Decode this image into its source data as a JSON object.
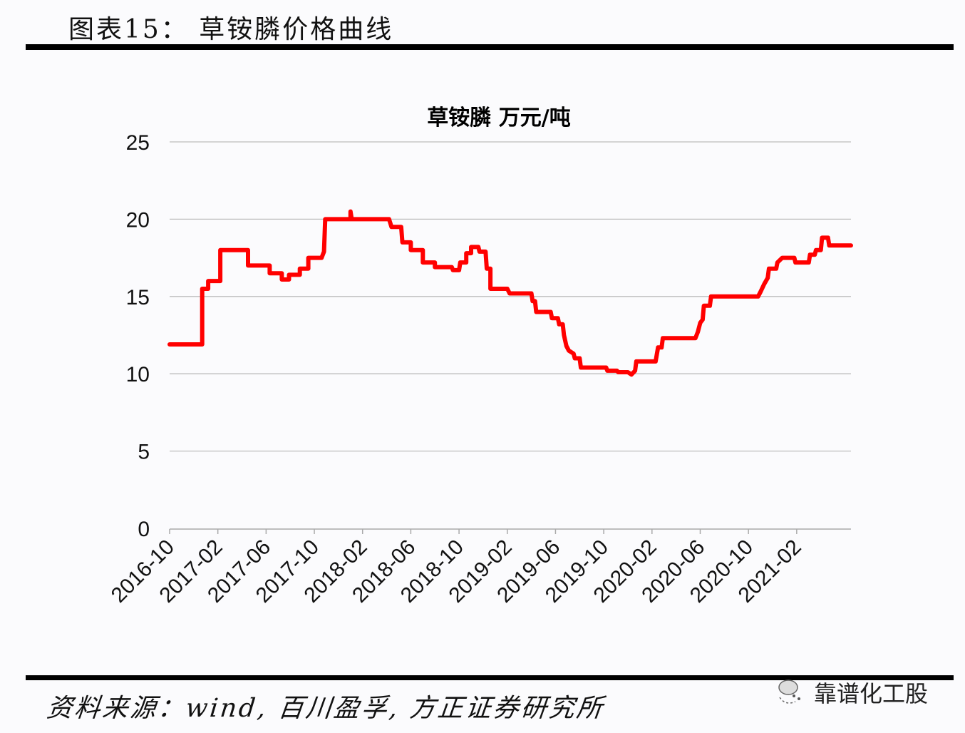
{
  "header": {
    "figure_title": "图表15： 草铵膦价格曲线"
  },
  "footer": {
    "source": "资料来源：wind, 百川盈孚, 方正证券研究所",
    "watermark": "靠谱化工股"
  },
  "colors": {
    "line": "#ff0000",
    "grid": "#bdbdbd",
    "axis": "#aaaaaa",
    "rule": "#000000"
  },
  "chart_data": {
    "type": "line",
    "title": "草铵膦 万元/吨",
    "xlabel": "",
    "ylabel": "万元/吨",
    "ylim": [
      0,
      25
    ],
    "yticks": [
      0,
      5,
      10,
      15,
      20,
      25
    ],
    "grid": true,
    "legend": "none",
    "x_tick_labels": [
      "2016-10",
      "2017-02",
      "2017-06",
      "2017-10",
      "2018-02",
      "2018-06",
      "2018-10",
      "2019-02",
      "2019-06",
      "2019-10",
      "2020-02",
      "2020-06",
      "2020-10",
      "2021-02"
    ],
    "x_unit": "months since 2016-10",
    "x_range": [
      0,
      56.5
    ],
    "series": [
      {
        "name": "草铵膦",
        "step": true,
        "points": [
          [
            0.0,
            11.9
          ],
          [
            2.7,
            11.9
          ],
          [
            2.7,
            15.5
          ],
          [
            3.2,
            15.5
          ],
          [
            3.2,
            16.0
          ],
          [
            4.2,
            16.0
          ],
          [
            4.2,
            18.0
          ],
          [
            6.5,
            18.0
          ],
          [
            6.5,
            17.0
          ],
          [
            8.3,
            17.0
          ],
          [
            8.3,
            16.5
          ],
          [
            9.3,
            16.5
          ],
          [
            9.3,
            16.1
          ],
          [
            9.9,
            16.1
          ],
          [
            9.9,
            16.4
          ],
          [
            10.8,
            16.4
          ],
          [
            10.8,
            16.8
          ],
          [
            11.5,
            16.8
          ],
          [
            11.5,
            17.5
          ],
          [
            12.6,
            17.5
          ],
          [
            12.8,
            17.9
          ],
          [
            12.9,
            20.0
          ],
          [
            15.0,
            20.0
          ],
          [
            15.0,
            20.5
          ],
          [
            15.1,
            20.0
          ],
          [
            18.2,
            20.0
          ],
          [
            18.4,
            19.5
          ],
          [
            19.2,
            19.5
          ],
          [
            19.3,
            18.5
          ],
          [
            20.0,
            18.5
          ],
          [
            20.0,
            18.0
          ],
          [
            21.0,
            18.0
          ],
          [
            21.0,
            17.2
          ],
          [
            22.0,
            17.2
          ],
          [
            22.0,
            16.9
          ],
          [
            23.4,
            16.9
          ],
          [
            23.5,
            16.7
          ],
          [
            24.0,
            16.7
          ],
          [
            24.1,
            17.2
          ],
          [
            24.6,
            17.2
          ],
          [
            24.6,
            17.8
          ],
          [
            25.0,
            17.8
          ],
          [
            25.0,
            18.2
          ],
          [
            25.6,
            18.2
          ],
          [
            25.7,
            17.9
          ],
          [
            26.2,
            17.9
          ],
          [
            26.3,
            16.8
          ],
          [
            26.6,
            16.8
          ],
          [
            26.6,
            15.5
          ],
          [
            28.0,
            15.5
          ],
          [
            28.2,
            15.2
          ],
          [
            30.0,
            15.2
          ],
          [
            30.1,
            14.7
          ],
          [
            30.3,
            14.7
          ],
          [
            30.4,
            14.0
          ],
          [
            31.6,
            14.0
          ],
          [
            31.7,
            13.6
          ],
          [
            32.2,
            13.6
          ],
          [
            32.3,
            13.2
          ],
          [
            32.6,
            13.2
          ],
          [
            32.7,
            12.5
          ],
          [
            32.9,
            11.8
          ],
          [
            33.1,
            11.5
          ],
          [
            33.5,
            11.3
          ],
          [
            33.6,
            11.0
          ],
          [
            34.0,
            11.0
          ],
          [
            34.1,
            10.4
          ],
          [
            36.2,
            10.4
          ],
          [
            36.3,
            10.2
          ],
          [
            37.1,
            10.2
          ],
          [
            37.2,
            10.1
          ],
          [
            38.0,
            10.1
          ],
          [
            38.3,
            9.95
          ],
          [
            38.6,
            10.2
          ],
          [
            38.7,
            10.8
          ],
          [
            40.3,
            10.8
          ],
          [
            40.5,
            11.7
          ],
          [
            40.8,
            11.7
          ],
          [
            40.9,
            12.3
          ],
          [
            43.6,
            12.3
          ],
          [
            43.8,
            12.7
          ],
          [
            44.0,
            13.3
          ],
          [
            44.2,
            13.5
          ],
          [
            44.3,
            14.4
          ],
          [
            44.8,
            14.4
          ],
          [
            44.9,
            15.0
          ],
          [
            48.8,
            15.0
          ],
          [
            49.0,
            15.3
          ],
          [
            49.3,
            15.8
          ],
          [
            49.6,
            16.2
          ],
          [
            49.7,
            16.8
          ],
          [
            50.3,
            16.8
          ],
          [
            50.4,
            17.2
          ],
          [
            50.8,
            17.5
          ],
          [
            51.8,
            17.5
          ],
          [
            51.9,
            17.2
          ],
          [
            53.0,
            17.2
          ],
          [
            53.1,
            17.7
          ],
          [
            53.5,
            17.7
          ],
          [
            53.6,
            18.0
          ],
          [
            54.0,
            18.0
          ],
          [
            54.1,
            18.8
          ],
          [
            54.6,
            18.8
          ],
          [
            54.7,
            18.3
          ],
          [
            56.5,
            18.3
          ]
        ]
      }
    ]
  }
}
